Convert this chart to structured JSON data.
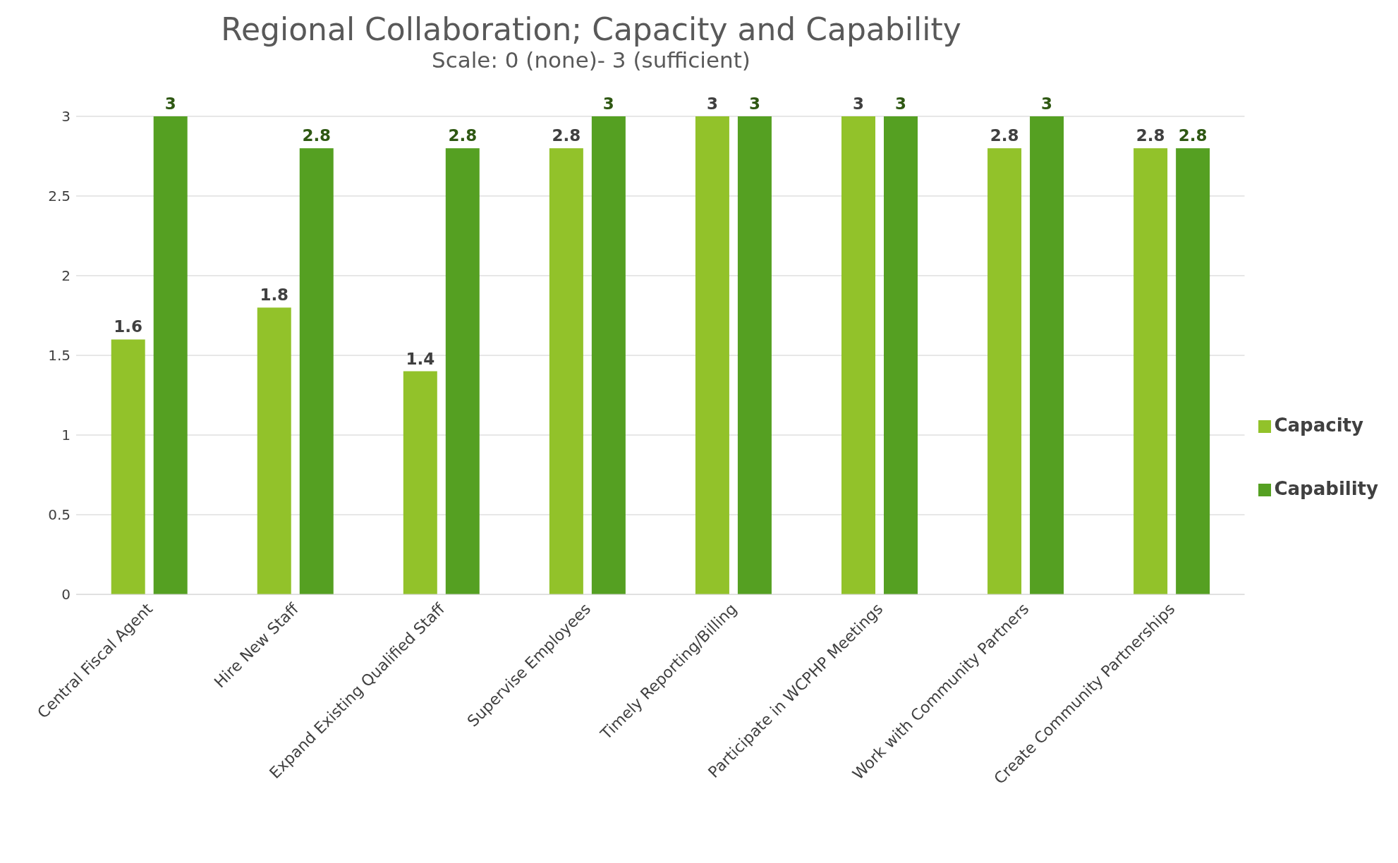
{
  "chart_data": {
    "type": "bar",
    "title": "Regional Collaboration; Capacity and Capability",
    "subtitle": "Scale: 0 (none)- 3 (sufficient)",
    "categories": [
      "Central Fiscal Agent",
      "Hire New Staff",
      "Expand Existing Qualified Staff",
      "Supervise Employees",
      "Timely Reporting/Billing",
      "Participate in WCPHP Meetings",
      "Work with Community Partners",
      "Create Community Partnerships"
    ],
    "series": [
      {
        "name": "Capacity",
        "color": "#92c22a",
        "values": [
          1.6,
          1.8,
          1.4,
          2.8,
          3,
          3,
          2.8,
          2.8
        ]
      },
      {
        "name": "Capability",
        "color": "#55a022",
        "values": [
          3,
          2.8,
          2.8,
          3,
          3,
          3,
          3,
          2.8
        ]
      }
    ],
    "ylim": [
      0,
      3
    ],
    "yticks": [
      0,
      0.5,
      1,
      1.5,
      2,
      2.5,
      3
    ],
    "grid": "y",
    "legend": "right",
    "data_labels": true
  }
}
